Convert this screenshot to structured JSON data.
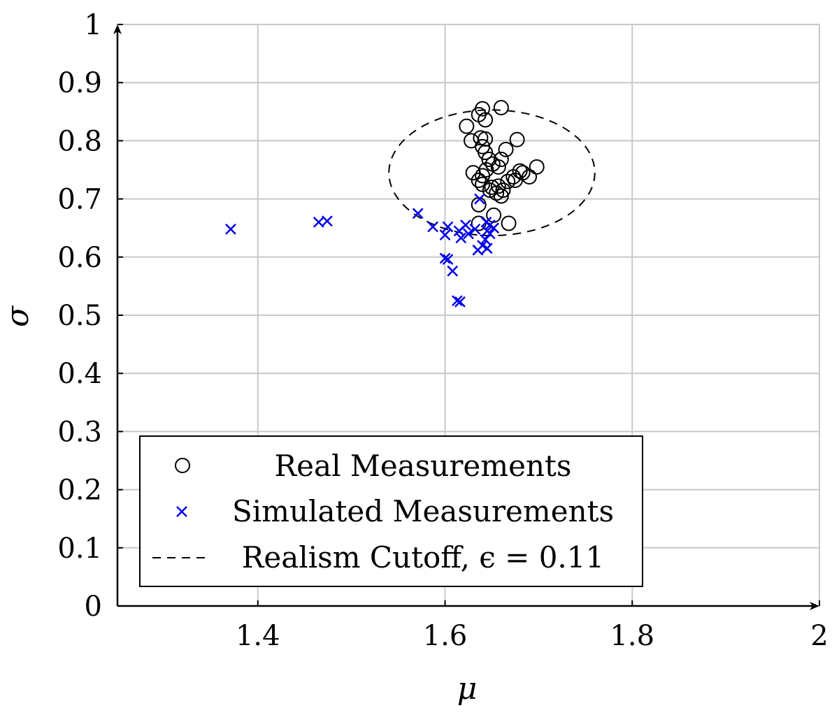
{
  "chart_data": {
    "type": "scatter",
    "xlabel": "μ",
    "ylabel": "σ",
    "xlim": [
      1.25,
      2.0
    ],
    "ylim": [
      0,
      1.0
    ],
    "x_ticks": [
      "1.4",
      "1.6",
      "1.8",
      "2"
    ],
    "x_tick_values": [
      1.4,
      1.6,
      1.8,
      2.0
    ],
    "y_ticks": [
      "0",
      "0.1",
      "0.2",
      "0.3",
      "0.4",
      "0.5",
      "0.6",
      "0.7",
      "0.8",
      "0.9",
      "1"
    ],
    "y_tick_values": [
      0,
      0.1,
      0.2,
      0.3,
      0.4,
      0.5,
      0.6,
      0.7,
      0.8,
      0.9,
      1.0
    ],
    "grid": true,
    "legend_position": "bottom-left",
    "series": [
      {
        "name": "Real Measurements",
        "marker": "circle",
        "color": "#000000",
        "points": [
          [
            1.66,
            0.857
          ],
          [
            1.64,
            0.855
          ],
          [
            1.636,
            0.845
          ],
          [
            1.643,
            0.836
          ],
          [
            1.623,
            0.825
          ],
          [
            1.638,
            0.805
          ],
          [
            1.628,
            0.8
          ],
          [
            1.643,
            0.803
          ],
          [
            1.677,
            0.802
          ],
          [
            1.64,
            0.79
          ],
          [
            1.643,
            0.78
          ],
          [
            1.647,
            0.768
          ],
          [
            1.66,
            0.768
          ],
          [
            1.665,
            0.785
          ],
          [
            1.651,
            0.76
          ],
          [
            1.657,
            0.755
          ],
          [
            1.644,
            0.75
          ],
          [
            1.63,
            0.745
          ],
          [
            1.64,
            0.74
          ],
          [
            1.698,
            0.755
          ],
          [
            1.68,
            0.748
          ],
          [
            1.683,
            0.745
          ],
          [
            1.69,
            0.738
          ],
          [
            1.673,
            0.738
          ],
          [
            1.675,
            0.732
          ],
          [
            1.667,
            0.73
          ],
          [
            1.636,
            0.732
          ],
          [
            1.64,
            0.725
          ],
          [
            1.65,
            0.72
          ],
          [
            1.648,
            0.715
          ],
          [
            1.657,
            0.722
          ],
          [
            1.662,
            0.715
          ],
          [
            1.655,
            0.71
          ],
          [
            1.66,
            0.705
          ],
          [
            1.636,
            0.69
          ],
          [
            1.652,
            0.672
          ],
          [
            1.668,
            0.658
          ],
          [
            1.636,
            0.658
          ]
        ]
      },
      {
        "name": "Simulated Measurements",
        "marker": "cross",
        "color": "#0000ee",
        "points": [
          [
            1.371,
            0.648
          ],
          [
            1.465,
            0.66
          ],
          [
            1.474,
            0.662
          ],
          [
            1.571,
            0.675
          ],
          [
            1.587,
            0.652
          ],
          [
            1.6,
            0.638
          ],
          [
            1.603,
            0.652
          ],
          [
            1.615,
            0.645
          ],
          [
            1.617,
            0.633
          ],
          [
            1.622,
            0.655
          ],
          [
            1.625,
            0.64
          ],
          [
            1.632,
            0.648
          ],
          [
            1.635,
            0.612
          ],
          [
            1.637,
            0.7
          ],
          [
            1.64,
            0.62
          ],
          [
            1.643,
            0.63
          ],
          [
            1.645,
            0.645
          ],
          [
            1.645,
            0.615
          ],
          [
            1.648,
            0.64
          ],
          [
            1.648,
            0.655
          ],
          [
            1.652,
            0.65
          ],
          [
            1.644,
            0.66
          ],
          [
            1.6,
            0.598
          ],
          [
            1.603,
            0.596
          ],
          [
            1.608,
            0.576
          ],
          [
            1.613,
            0.525
          ],
          [
            1.616,
            0.523
          ]
        ]
      },
      {
        "name": "Realism Cutoff, ϵ = 0.11",
        "marker": "dashed-ellipse",
        "color": "#000000",
        "center": [
          1.65,
          0.745
        ],
        "radius_mu": 0.11,
        "radius_sigma": 0.108
      }
    ]
  },
  "legend": {
    "items": [
      {
        "label": "Real Measurements"
      },
      {
        "label": "Simulated Measurements"
      },
      {
        "label": "Realism Cutoff, ϵ = 0.11"
      }
    ]
  }
}
